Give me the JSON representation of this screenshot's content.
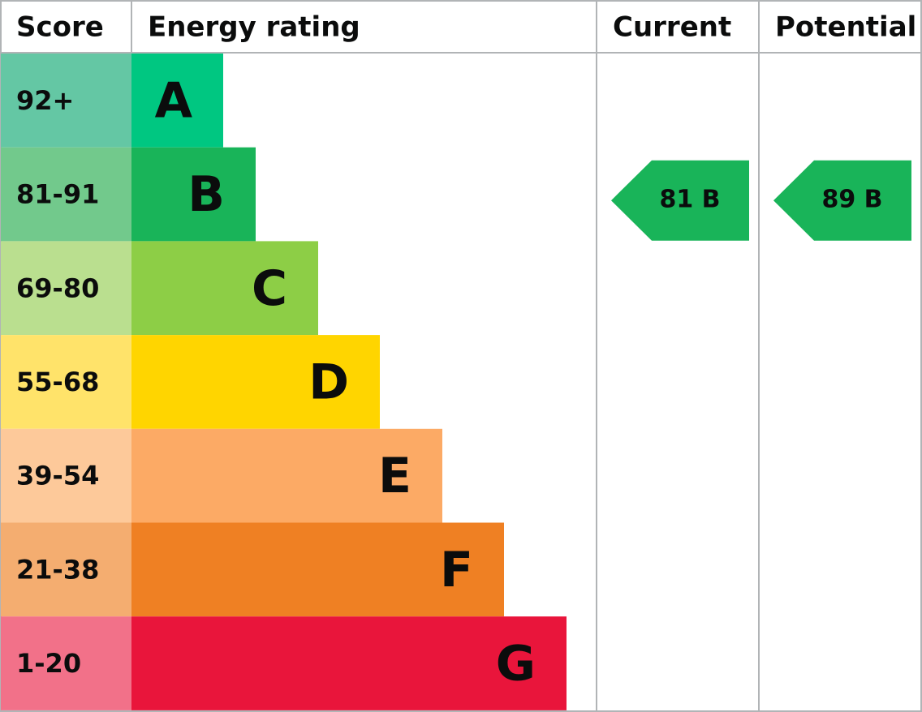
{
  "header": {
    "score": "Score",
    "energy_rating": "Energy rating",
    "current": "Current",
    "potential": "Potential"
  },
  "bands": [
    {
      "score": "92+",
      "letter": "A",
      "bar_color": "#00c781",
      "score_color": "#64c7a4"
    },
    {
      "score": "81-91",
      "letter": "B",
      "bar_color": "#19b459",
      "score_color": "#72c98c"
    },
    {
      "score": "69-80",
      "letter": "C",
      "bar_color": "#8dce46",
      "score_color": "#badf8f"
    },
    {
      "score": "55-68",
      "letter": "D",
      "bar_color": "#ffd500",
      "score_color": "#ffe36a"
    },
    {
      "score": "39-54",
      "letter": "E",
      "bar_color": "#fcaa65",
      "score_color": "#fdc99a"
    },
    {
      "score": "21-38",
      "letter": "F",
      "bar_color": "#ef8023",
      "score_color": "#f4ad70"
    },
    {
      "score": "1-20",
      "letter": "G",
      "bar_color": "#e9153b",
      "score_color": "#f27189"
    }
  ],
  "current": {
    "label": "81 B",
    "color": "#19b459"
  },
  "potential": {
    "label": "89 B",
    "color": "#19b459"
  }
}
